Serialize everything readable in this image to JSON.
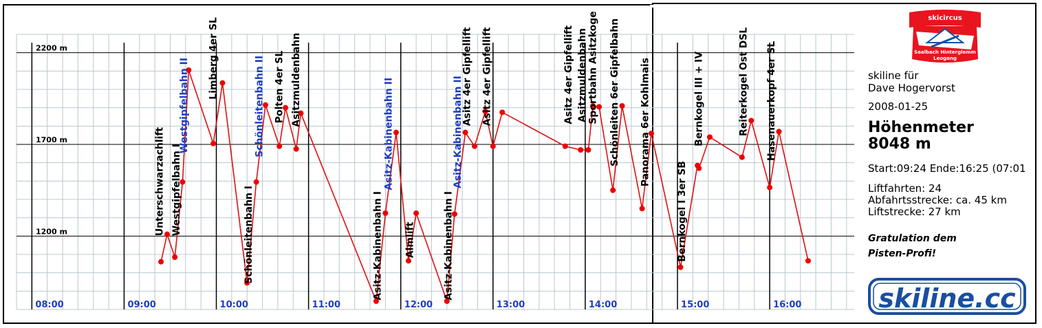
{
  "app": {
    "logo_top": {
      "line1": "skicircus",
      "line2": "Saalbach Hinterglemm",
      "line3": "Leogang"
    },
    "logo_bottom": "skiline.cc",
    "header": {
      "line1": "skiline für",
      "line2": "Dave Hogervorst"
    },
    "date": "2008-01-25",
    "title": "Höhenmeter",
    "total": "8048 m",
    "time_summary": "Start:09:24 Ende:16:25 (07:01",
    "stats": {
      "rides": "Liftfahrten: 24",
      "descent": "Abfahrtsstrecke: ca. 45 km",
      "lift_distance": "Liftstrecke: 27 km"
    },
    "congrats": {
      "line1": "Gratulation dem",
      "line2": "Pisten-Profi!"
    }
  },
  "colors": {
    "line": "#dd1111",
    "point": "#ee0000",
    "major_grid": "#000000",
    "minor_grid": "#b8c8d0",
    "time_label": "#1f3fc0",
    "lift_blue": "#1f3fc0",
    "logo_red": "#e8141e",
    "logo_blue": "#1a4fa0"
  },
  "chart_data": {
    "type": "line",
    "x_unit": "time",
    "y_unit": "m",
    "ylim": [
      800,
      2300
    ],
    "xlim": [
      "07:50",
      "16:55"
    ],
    "yticks": [
      {
        "value": 2200,
        "label": "2200 m"
      },
      {
        "value": 1700,
        "label": "1700 m"
      },
      {
        "value": 1200,
        "label": "1200 m"
      }
    ],
    "xticks": [
      "08:00",
      "09:00",
      "10:00",
      "11:00",
      "12:00",
      "13:00",
      "14:00",
      "15:00",
      "16:00"
    ],
    "grid": true,
    "points": [
      {
        "t": "09:24",
        "y": 1060
      },
      {
        "t": "09:28",
        "y": 1210
      },
      {
        "t": "09:33",
        "y": 1085
      },
      {
        "t": "09:38",
        "y": 1495
      },
      {
        "t": "09:42",
        "y": 2105
      },
      {
        "t": "09:58",
        "y": 1705
      },
      {
        "t": "10:04",
        "y": 2035
      },
      {
        "t": "10:20",
        "y": 945
      },
      {
        "t": "10:26",
        "y": 1495
      },
      {
        "t": "10:32",
        "y": 1915
      },
      {
        "t": "10:41",
        "y": 1690
      },
      {
        "t": "10:45",
        "y": 1900
      },
      {
        "t": "10:52",
        "y": 1675
      },
      {
        "t": "10:55",
        "y": 1870
      },
      {
        "t": "11:44",
        "y": 845
      },
      {
        "t": "11:50",
        "y": 1325
      },
      {
        "t": "11:57",
        "y": 1765
      },
      {
        "t": "12:05",
        "y": 1065
      },
      {
        "t": "12:10",
        "y": 1325
      },
      {
        "t": "12:30",
        "y": 845
      },
      {
        "t": "12:35",
        "y": 1320
      },
      {
        "t": "12:42",
        "y": 1765
      },
      {
        "t": "12:48",
        "y": 1690
      },
      {
        "t": "12:55",
        "y": 1880
      },
      {
        "t": "13:00",
        "y": 1690
      },
      {
        "t": "13:06",
        "y": 1875
      },
      {
        "t": "13:47",
        "y": 1690
      },
      {
        "t": "13:57",
        "y": 1670
      },
      {
        "t": "14:02",
        "y": 1670
      },
      {
        "t": "14:05",
        "y": 1910
      },
      {
        "t": "14:09",
        "y": 1905
      },
      {
        "t": "14:18",
        "y": 1450
      },
      {
        "t": "14:24",
        "y": 1910
      },
      {
        "t": "14:37",
        "y": 1350
      },
      {
        "t": "14:43",
        "y": 1760
      },
      {
        "t": "15:02",
        "y": 1030
      },
      {
        "t": "15:13",
        "y": 1585
      },
      {
        "t": "15:14",
        "y": 1570
      },
      {
        "t": "15:21",
        "y": 1740
      },
      {
        "t": "15:42",
        "y": 1630
      },
      {
        "t": "15:48",
        "y": 1830
      },
      {
        "t": "16:00",
        "y": 1465
      },
      {
        "t": "16:06",
        "y": 1770
      },
      {
        "t": "16:25",
        "y": 1065
      }
    ],
    "annotations": [
      {
        "text": "Unterschwarzachlift",
        "t": "09:25",
        "y": 1200,
        "color": "black"
      },
      {
        "text": "Westgipfelbahn I",
        "t": "09:36",
        "y": 1200,
        "color": "black"
      },
      {
        "text": "Westgipfelbahn II",
        "t": "09:41",
        "y": 1650,
        "color": "blue"
      },
      {
        "text": "Limberg 4er SL",
        "t": "10:00",
        "y": 1945,
        "color": "black"
      },
      {
        "text": "Schönleitenbahn I",
        "t": "10:23",
        "y": 940,
        "color": "black"
      },
      {
        "text": "Schönleitenbahn II",
        "t": "10:30",
        "y": 1630,
        "color": "blue"
      },
      {
        "text": "Polten 4er SL",
        "t": "10:43",
        "y": 1815,
        "color": "black"
      },
      {
        "text": "Asitzmuldenbahn",
        "t": "10:54",
        "y": 1795,
        "color": "black"
      },
      {
        "text": "Asitz-Kabinenbahn I",
        "t": "11:47",
        "y": 850,
        "color": "black"
      },
      {
        "text": "Asitz-Kabinenbahn II",
        "t": "11:54",
        "y": 1450,
        "color": "blue"
      },
      {
        "text": "Almlift",
        "t": "12:08",
        "y": 1080,
        "color": "black"
      },
      {
        "text": "Asitz-Kabinenbahn I",
        "t": "12:33",
        "y": 850,
        "color": "black"
      },
      {
        "text": "Asitz-Kabinenbahn II",
        "t": "12:39",
        "y": 1460,
        "color": "blue"
      },
      {
        "text": "Asitz 4er Gipfellift",
        "t": "12:45",
        "y": 1800,
        "color": "black"
      },
      {
        "text": "Asitz 4er Gipfellift",
        "t": "12:58",
        "y": 1800,
        "color": "black"
      },
      {
        "text": "Asitz 4er Gipfellift",
        "t": "13:51",
        "y": 1810,
        "color": "black"
      },
      {
        "text": "Asitzmuldenbahn",
        "t": "14:00",
        "y": 1820,
        "color": "black"
      },
      {
        "text": "Sportbahn Asitzkoge",
        "t": "14:07",
        "y": 1810,
        "color": "black"
      },
      {
        "text": "Schönleiten 6er Gipfelbahn",
        "t": "14:21",
        "y": 1580,
        "color": "black"
      },
      {
        "text": "Panorama 6er Kohlmais",
        "t": "14:41",
        "y": 1470,
        "color": "black"
      },
      {
        "text": "Bernkogel I 3er SB",
        "t": "15:05",
        "y": 1060,
        "color": "black"
      },
      {
        "text": "Bernkogel III + IV",
        "t": "15:16",
        "y": 1690,
        "color": "black"
      },
      {
        "text": "Reiterkogel Ost DSL",
        "t": "15:45",
        "y": 1745,
        "color": "black"
      },
      {
        "text": "Hasenauerkopf 4er SL",
        "t": "16:03",
        "y": 1610,
        "color": "black"
      }
    ]
  }
}
